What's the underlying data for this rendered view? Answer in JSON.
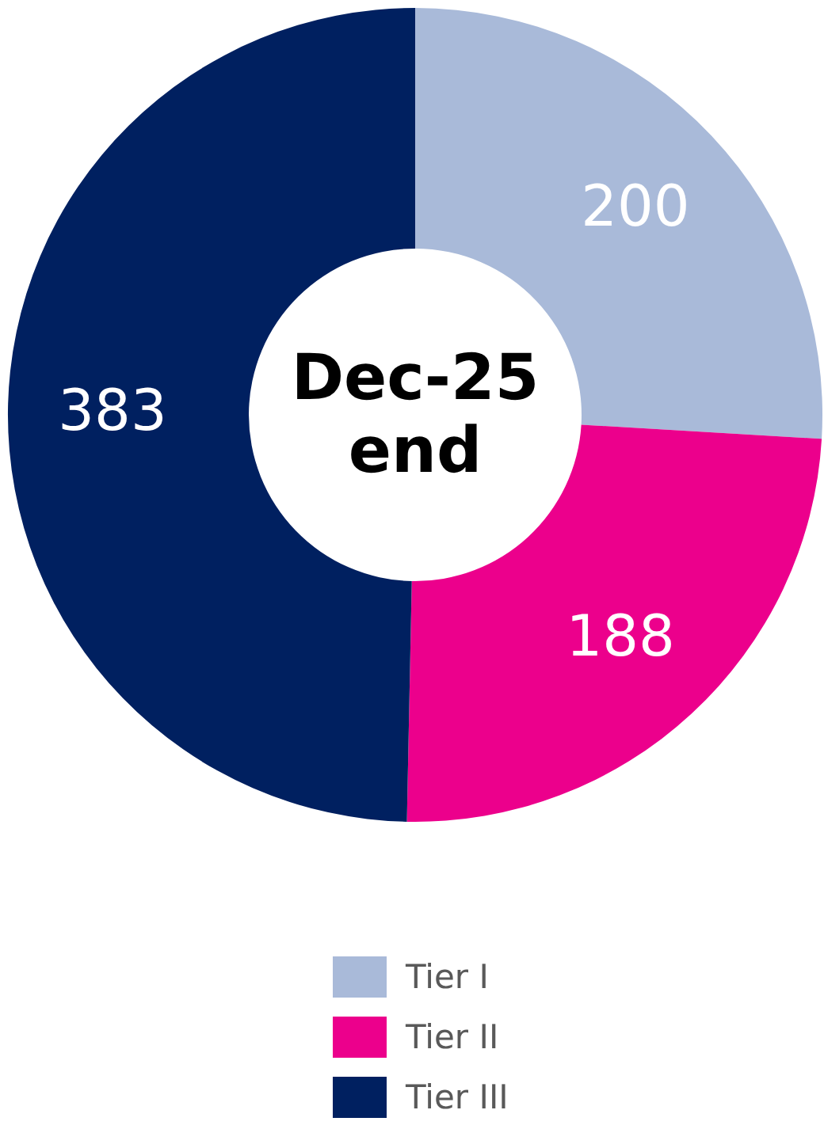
{
  "chart_data": {
    "type": "donut",
    "title": "Dec-25 end",
    "categories": [
      "Tier I",
      "Tier II",
      "Tier III"
    ],
    "values": [
      200,
      188,
      383
    ],
    "colors": [
      "#a9bad9",
      "#ec008c",
      "#002060"
    ],
    "data_labels": true,
    "legend": "bottom"
  }
}
